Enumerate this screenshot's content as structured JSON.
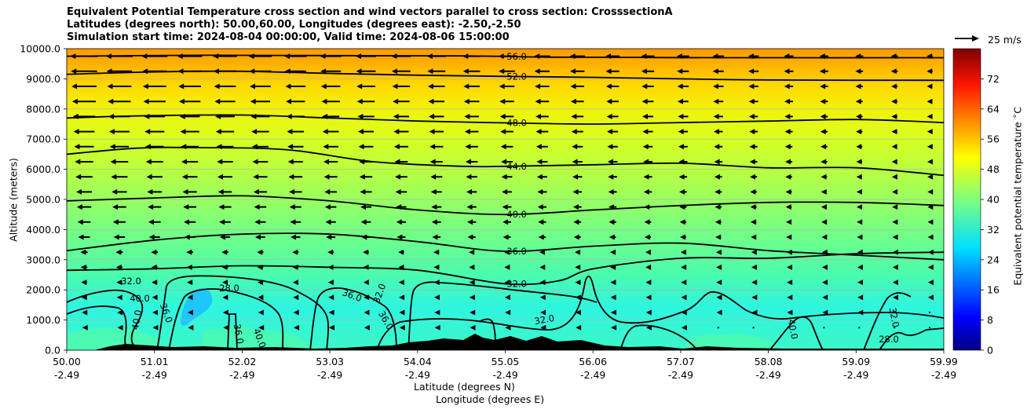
{
  "chart_data": {
    "type": "heatmap",
    "title_lines": [
      "Equivalent Potential Temperature cross section and wind vectors parallel to cross section: CrosssectionA",
      "Latitudes (degrees north): 50.00,60.00, Longitudes (degrees east): -2.50,-2.50",
      "Simulation start time: 2024-08-04 00:00:00, Valid time: 2024-08-06 15:00:00"
    ],
    "ylabel": "Altitude (meters)",
    "xlabel_lat": "Latitude (degrees N)",
    "xlabel_lon": "Longitude (degrees E)",
    "ylim": [
      0,
      10000
    ],
    "y_ticks": [
      "0.0",
      "1000.0",
      "2000.0",
      "3000.0",
      "4000.0",
      "5000.0",
      "6000.0",
      "7000.0",
      "8000.0",
      "9000.0",
      "10000.0"
    ],
    "y_tick_values": [
      0,
      1000,
      2000,
      3000,
      4000,
      5000,
      6000,
      7000,
      8000,
      9000,
      10000
    ],
    "x_tick_lat": [
      "50.00",
      "51.01",
      "52.02",
      "53.03",
      "54.04",
      "55.05",
      "56.06",
      "57.07",
      "58.08",
      "59.09",
      "59.99"
    ],
    "x_tick_lon": [
      "-2.49",
      "-2.49",
      "-2.49",
      "-2.49",
      "-2.49",
      "-2.49",
      "-2.49",
      "-2.49",
      "-2.49",
      "-2.49",
      "-2.49"
    ],
    "xlim": [
      50.0,
      59.99
    ],
    "colorbar": {
      "label": "Equivalent potential temperature $^\\circ$C",
      "range": [
        0,
        80
      ],
      "ticks": [
        "0",
        "8",
        "16",
        "24",
        "32",
        "40",
        "48",
        "56",
        "64",
        "72"
      ],
      "tick_values": [
        0,
        8,
        16,
        24,
        32,
        40,
        48,
        56,
        64,
        72
      ]
    },
    "wind_reference": "25 m/s",
    "contour_lines": [
      {
        "label": "56.0",
        "level": 56,
        "points": [
          [
            50.0,
            9750
          ],
          [
            51.5,
            9780
          ],
          [
            53.0,
            9770
          ],
          [
            54.5,
            9760
          ],
          [
            55.5,
            9720
          ],
          [
            56.5,
            9710
          ],
          [
            57.5,
            9700
          ],
          [
            59.99,
            9700
          ]
        ]
      },
      {
        "label": "52.0",
        "level": 52,
        "points": [
          [
            50.0,
            9150
          ],
          [
            51.0,
            9230
          ],
          [
            52.0,
            9250
          ],
          [
            53.0,
            9180
          ],
          [
            54.0,
            9120
          ],
          [
            55.0,
            9080
          ],
          [
            56.0,
            9050
          ],
          [
            57.0,
            9000
          ],
          [
            58.0,
            8960
          ],
          [
            59.99,
            8950
          ]
        ]
      },
      {
        "label": "48.0",
        "level": 48,
        "points": [
          [
            50.0,
            7700
          ],
          [
            50.5,
            7750
          ],
          [
            51.0,
            7780
          ],
          [
            52.0,
            7800
          ],
          [
            53.0,
            7700
          ],
          [
            54.0,
            7600
          ],
          [
            55.0,
            7540
          ],
          [
            56.0,
            7500
          ],
          [
            57.0,
            7550
          ],
          [
            58.0,
            7600
          ],
          [
            59.0,
            7650
          ],
          [
            59.99,
            7550
          ]
        ]
      },
      {
        "label": "44.0",
        "level": 44,
        "points": [
          [
            50.0,
            6500
          ],
          [
            50.8,
            6700
          ],
          [
            51.5,
            6720
          ],
          [
            52.5,
            6650
          ],
          [
            53.5,
            6250
          ],
          [
            54.5,
            6100
          ],
          [
            55.0,
            6100
          ],
          [
            56.0,
            6150
          ],
          [
            57.0,
            6200
          ],
          [
            58.0,
            6050
          ],
          [
            59.0,
            6050
          ],
          [
            59.99,
            5800
          ]
        ]
      },
      {
        "label": "40.0",
        "level": 40,
        "points": [
          [
            50.0,
            4950
          ],
          [
            51.0,
            5050
          ],
          [
            52.0,
            5120
          ],
          [
            53.0,
            4950
          ],
          [
            54.0,
            4650
          ],
          [
            55.0,
            4500
          ],
          [
            56.0,
            4650
          ],
          [
            57.0,
            4800
          ],
          [
            58.0,
            4900
          ],
          [
            59.0,
            4900
          ],
          [
            59.99,
            4800
          ]
        ]
      },
      {
        "label": "36.0",
        "level": 36,
        "points": [
          [
            50.0,
            3300
          ],
          [
            51.0,
            3650
          ],
          [
            52.0,
            3850
          ],
          [
            53.0,
            3850
          ],
          [
            54.0,
            3600
          ],
          [
            55.0,
            3280
          ],
          [
            56.0,
            3450
          ],
          [
            57.0,
            3550
          ],
          [
            58.0,
            3300
          ],
          [
            59.0,
            3150
          ],
          [
            59.99,
            3000
          ]
        ]
      },
      {
        "label": "32.0",
        "level": 32,
        "points": [
          [
            50.0,
            2650
          ],
          [
            51.0,
            2700
          ],
          [
            52.0,
            2800
          ],
          [
            53.0,
            2750
          ],
          [
            54.0,
            2650
          ],
          [
            55.0,
            2200
          ],
          [
            55.6,
            2300
          ],
          [
            56.0,
            2700
          ],
          [
            57.0,
            3050
          ],
          [
            58.0,
            3050
          ],
          [
            59.0,
            3200
          ],
          [
            59.99,
            3250
          ]
        ]
      }
    ],
    "low_level_labels": [
      "32.0",
      "28.0",
      "40.0",
      "36.0",
      "40.0",
      "36.0",
      "40.0",
      "32.0",
      "36.0",
      "36.0",
      "32.0",
      "40.0",
      "32.0",
      "28.0"
    ]
  }
}
